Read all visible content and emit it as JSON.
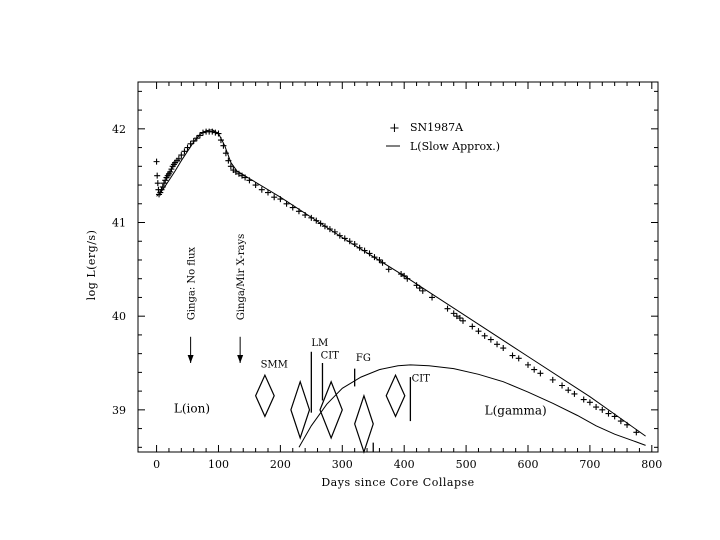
{
  "chart_data": {
    "type": "scatter",
    "xlabel": "Days since Core Collapse",
    "ylabel": "log L(erg/s)",
    "xlim": [
      -30,
      810
    ],
    "ylim": [
      38.55,
      42.5
    ],
    "xticks": [
      0,
      100,
      200,
      300,
      400,
      500,
      600,
      700,
      800
    ],
    "yticks": [
      39,
      40,
      41,
      42
    ],
    "legend": {
      "position": "top-right",
      "entries": [
        {
          "marker": "+",
          "label": "SN1987A"
        },
        {
          "marker": "line",
          "label": "L(Slow Approx.)"
        }
      ]
    },
    "series": [
      {
        "name": "SN1987A",
        "kind": "points",
        "x": [
          0,
          1,
          2,
          3,
          4,
          6,
          8,
          10,
          12,
          14,
          16,
          18,
          20,
          22,
          24,
          26,
          28,
          30,
          33,
          36,
          40,
          45,
          50,
          55,
          60,
          65,
          70,
          75,
          80,
          85,
          90,
          95,
          100,
          104,
          108,
          112,
          116,
          120,
          124,
          128,
          133,
          138,
          143,
          150,
          160,
          170,
          180,
          190,
          200,
          210,
          220,
          230,
          240,
          250,
          258,
          265,
          272,
          280,
          288,
          296,
          304,
          312,
          320,
          328,
          336,
          344,
          352,
          360,
          365,
          375,
          395,
          400,
          405,
          420,
          425,
          430,
          445,
          470,
          480,
          485,
          490,
          495,
          510,
          520,
          530,
          540,
          550,
          560,
          575,
          585,
          600,
          610,
          620,
          640,
          655,
          665,
          675,
          690,
          700,
          710,
          720,
          730,
          740,
          750,
          760,
          775
        ],
        "y": [
          41.65,
          41.5,
          41.42,
          41.35,
          41.3,
          41.32,
          41.35,
          41.38,
          41.42,
          41.45,
          41.48,
          41.5,
          41.52,
          41.54,
          41.57,
          41.6,
          41.62,
          41.64,
          41.66,
          41.68,
          41.72,
          41.76,
          41.8,
          41.84,
          41.87,
          41.9,
          41.93,
          41.96,
          41.97,
          41.97,
          41.97,
          41.96,
          41.95,
          41.88,
          41.82,
          41.74,
          41.66,
          41.6,
          41.56,
          41.54,
          41.52,
          41.5,
          41.48,
          41.45,
          41.4,
          41.35,
          41.32,
          41.27,
          41.25,
          41.2,
          41.16,
          41.12,
          41.08,
          41.05,
          41.02,
          40.99,
          40.96,
          40.93,
          40.9,
          40.86,
          40.83,
          40.8,
          40.77,
          40.73,
          40.7,
          40.67,
          40.63,
          40.6,
          40.57,
          40.5,
          40.45,
          40.43,
          40.4,
          40.33,
          40.3,
          40.27,
          40.2,
          40.08,
          40.03,
          40.0,
          39.98,
          39.95,
          39.89,
          39.84,
          39.79,
          39.75,
          39.7,
          39.66,
          39.58,
          39.55,
          39.48,
          39.43,
          39.39,
          39.32,
          39.26,
          39.21,
          39.17,
          39.11,
          39.08,
          39.03,
          39.0,
          38.96,
          38.93,
          38.88,
          38.84,
          38.76
        ]
      },
      {
        "name": "L(Slow Approx.)",
        "kind": "line",
        "x": [
          0,
          10,
          20,
          30,
          40,
          50,
          60,
          70,
          80,
          90,
          100,
          110,
          120,
          130,
          140,
          150,
          200,
          300,
          400,
          500,
          600,
          700,
          790
        ],
        "y": [
          41.28,
          41.35,
          41.45,
          41.55,
          41.66,
          41.76,
          41.86,
          41.94,
          41.98,
          41.99,
          41.95,
          41.82,
          41.64,
          41.55,
          41.51,
          41.47,
          41.27,
          40.84,
          40.43,
          40.0,
          39.57,
          39.14,
          38.72
        ]
      },
      {
        "name": "L(gamma)",
        "kind": "line",
        "x": [
          230,
          250,
          275,
          300,
          330,
          360,
          390,
          410,
          440,
          480,
          520,
          560,
          600,
          640,
          680,
          710,
          740,
          770,
          790
        ],
        "y": [
          38.6,
          38.83,
          39.06,
          39.23,
          39.35,
          39.43,
          39.47,
          39.48,
          39.47,
          39.44,
          39.38,
          39.3,
          39.19,
          39.07,
          38.94,
          38.83,
          38.74,
          38.67,
          38.62
        ]
      }
    ],
    "annotations": [
      {
        "text": "Ginga: No flux",
        "x": 55,
        "y_end": 39.5,
        "type": "arrow"
      },
      {
        "text": "Ginga/Mir X-rays",
        "x": 135,
        "y_end": 39.5,
        "type": "arrow"
      },
      {
        "text": "SMM",
        "x": 168,
        "y": 39.45
      },
      {
        "text": "LM",
        "x": 250,
        "y": 39.68
      },
      {
        "text": "CIT",
        "x": 265,
        "y": 39.55
      },
      {
        "text": "FG",
        "x": 322,
        "y": 39.52
      },
      {
        "text": "CIT",
        "x": 412,
        "y": 39.3
      },
      {
        "text": "L(ion)",
        "x": 28,
        "y": 38.97
      },
      {
        "text": "L(gamma)",
        "x": 530,
        "y": 38.95
      }
    ],
    "diamonds": [
      {
        "x": 175,
        "y_center": 39.15,
        "half_width_days": 15,
        "half_height": 0.22
      },
      {
        "x": 232,
        "y_center": 39.0,
        "half_width_days": 15,
        "half_height": 0.3
      },
      {
        "x": 282,
        "y_center": 39.0,
        "half_width_days": 18,
        "half_height": 0.3
      },
      {
        "x": 335,
        "y_center": 38.85,
        "half_width_days": 15,
        "half_height": 0.3
      },
      {
        "x": 386,
        "y_center": 39.15,
        "half_width_days": 15,
        "half_height": 0.22
      }
    ],
    "vertical_markers": [
      {
        "x": 250,
        "y_top": 39.62,
        "y_bottom": 38.97
      },
      {
        "x": 268,
        "y_top": 39.5,
        "y_bottom": 39.1
      },
      {
        "x": 320,
        "y_top": 39.44,
        "y_bottom": 39.25
      },
      {
        "x": 410,
        "y_top": 39.35,
        "y_bottom": 38.88
      },
      {
        "x": 350,
        "y_top": 38.65,
        "y_bottom": 38.55
      }
    ]
  }
}
